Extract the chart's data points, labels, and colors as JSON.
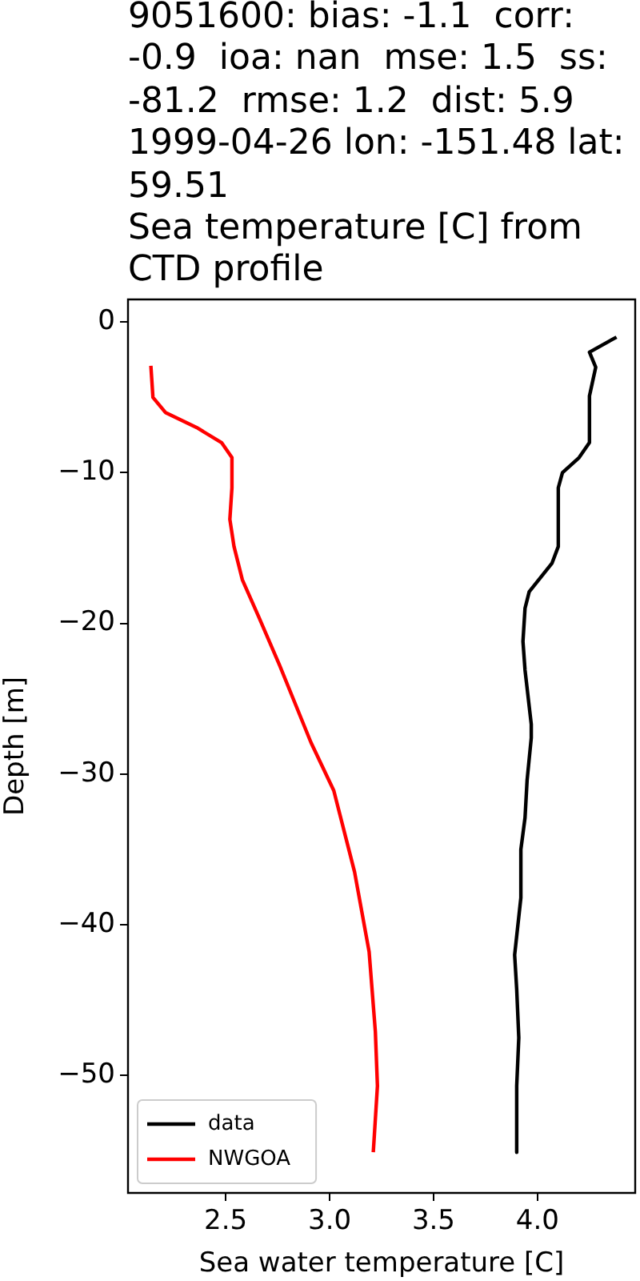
{
  "chart_data": {
    "type": "line",
    "title": "9051600: bias: -1.1  corr:\n-0.9  ioa: nan  mse: 1.5  ss:\n-81.2  rmse: 1.2  dist: 5.9\n1999-04-26 lon: -151.48 lat:\n59.51\nSea temperature [C] from\nCTD profile",
    "xlabel": "Sea water temperature [C]",
    "ylabel": "Depth [m]",
    "xlim": [
      2.03,
      4.47
    ],
    "ylim": [
      -57.8,
      1.5
    ],
    "xticks": [
      {
        "value": 2.5,
        "label": "2.5"
      },
      {
        "value": 3.0,
        "label": "3.0"
      },
      {
        "value": 3.5,
        "label": "3.5"
      },
      {
        "value": 4.0,
        "label": "4.0"
      }
    ],
    "yticks": [
      {
        "value": 0,
        "label": "0"
      },
      {
        "value": -10,
        "label": "−10"
      },
      {
        "value": -20,
        "label": "−20"
      },
      {
        "value": -30,
        "label": "−30"
      },
      {
        "value": -40,
        "label": "−40"
      },
      {
        "value": -50,
        "label": "−50"
      }
    ],
    "legend": "bottom left",
    "marker": "none",
    "line_style": "solid",
    "series": [
      {
        "name": "data",
        "color": "#000000",
        "x": [
          4.38,
          4.25,
          4.28,
          4.25,
          4.25,
          4.2,
          4.12,
          4.1,
          4.1,
          4.07,
          3.96,
          3.94,
          3.93,
          3.94,
          3.97,
          3.97,
          3.95,
          3.94,
          3.92,
          3.92,
          3.89,
          3.9,
          3.91,
          3.9,
          3.9
        ],
        "values": [
          -1.0,
          -2.0,
          -3.0,
          -4.9,
          -8.0,
          -9.0,
          -10.0,
          -11.0,
          -14.9,
          -16.0,
          -17.9,
          -19.0,
          -21.2,
          -23.1,
          -26.7,
          -27.6,
          -30.4,
          -32.9,
          -35.0,
          -38.2,
          -42.0,
          -44.3,
          -47.5,
          -50.7,
          -55.1
        ]
      },
      {
        "name": "NWGOA",
        "color": "#ff0000",
        "x": [
          2.14,
          2.15,
          2.21,
          2.36,
          2.48,
          2.53,
          2.53,
          2.52,
          2.54,
          2.58,
          2.66,
          2.76,
          2.91,
          3.02,
          3.12,
          3.19,
          3.22,
          3.23,
          3.21
        ],
        "values": [
          -2.9,
          -5.0,
          -6.0,
          -7.0,
          -8.0,
          -9.0,
          -11.0,
          -13.1,
          -14.9,
          -17.1,
          -19.6,
          -22.8,
          -27.9,
          -31.1,
          -36.5,
          -41.8,
          -47.1,
          -50.7,
          -55.1
        ]
      }
    ]
  }
}
